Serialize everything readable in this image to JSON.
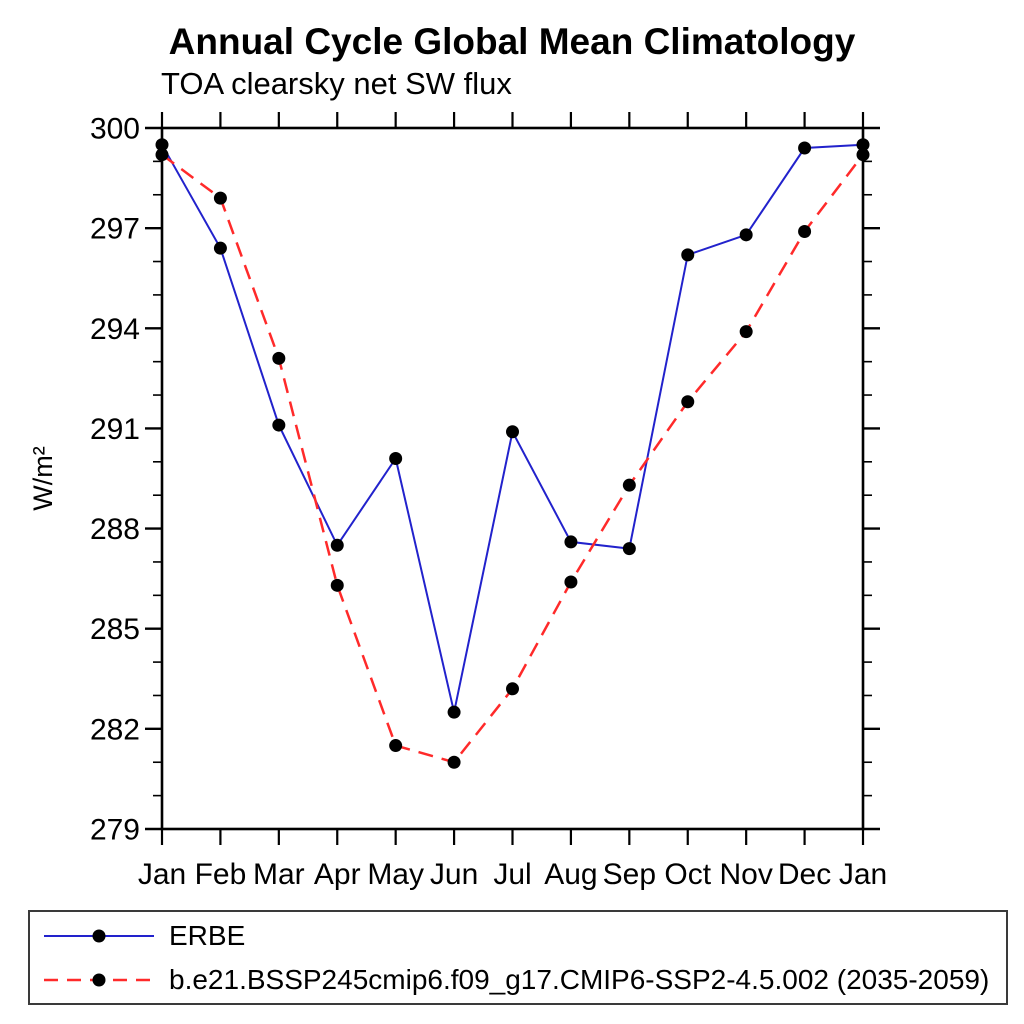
{
  "page": {
    "background": "#ffffff"
  },
  "chart_data": {
    "type": "line",
    "title": "Annual Cycle Global Mean Climatology",
    "subtitle": "TOA clearsky net SW flux",
    "xlabel": "",
    "ylabel": "W/m²",
    "categories": [
      "Jan",
      "Feb",
      "Mar",
      "Apr",
      "May",
      "Jun",
      "Jul",
      "Aug",
      "Sep",
      "Oct",
      "Nov",
      "Dec",
      "Jan"
    ],
    "ylim": [
      279,
      300
    ],
    "ytick_step": 3,
    "yminor_step": 1,
    "grid": false,
    "legend_position": "bottom",
    "axis_color": "#000000",
    "marker_color": "#000000",
    "series": [
      {
        "name": "ERBE",
        "color": "#2222cc",
        "style": "solid",
        "marker": "circle",
        "values": [
          299.5,
          296.4,
          291.1,
          287.5,
          290.1,
          282.5,
          290.9,
          287.6,
          287.4,
          296.2,
          296.8,
          299.4,
          299.5
        ]
      },
      {
        "name": "b.e21.BSSP245cmip6.f09_g17.CMIP6-SSP2-4.5.002 (2035-2059)",
        "color": "#ff2a2a",
        "style": "dashed",
        "marker": "circle",
        "values": [
          299.2,
          297.9,
          293.1,
          286.3,
          281.5,
          281.0,
          283.2,
          286.4,
          289.3,
          291.8,
          293.9,
          296.9,
          299.2
        ]
      }
    ]
  }
}
